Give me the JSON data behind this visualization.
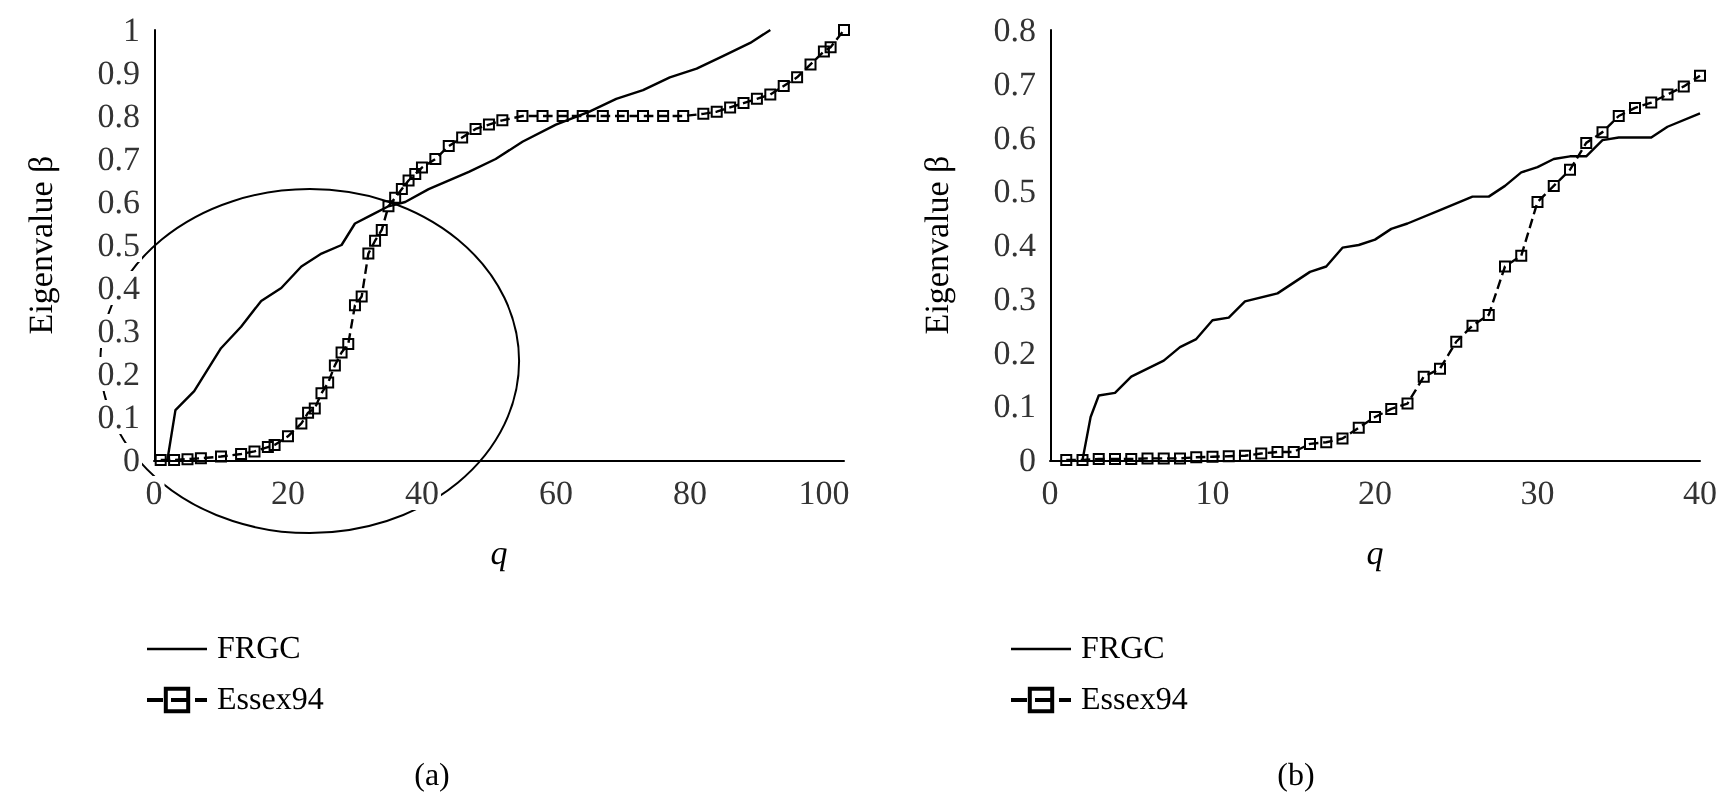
{
  "chart_data": [
    {
      "type": "line",
      "title": "(a)",
      "xlabel": "q",
      "ylabel": "Eigenvalue β",
      "xlim": [
        0,
        103
      ],
      "xticks": [
        0,
        20,
        40,
        60,
        80,
        100
      ],
      "ylim": [
        0,
        1
      ],
      "yticks": [
        0,
        0.1,
        0.2,
        0.3,
        0.4,
        0.5,
        0.6,
        0.7,
        0.8,
        0.9,
        1
      ],
      "grid": false,
      "legend": "bottom left",
      "series": [
        {
          "name": "FRGC",
          "color": "#000000",
          "marker": "none",
          "line_style": "solid",
          "x": [
            2,
            3.2,
            6,
            10,
            13,
            16,
            19,
            22,
            25,
            28,
            30,
            32.5,
            35,
            37.5,
            41,
            47,
            51,
            55,
            60,
            65,
            69,
            73,
            77,
            81,
            85,
            89,
            92
          ],
          "values": [
            0,
            0.116,
            0.16,
            0.26,
            0.31,
            0.37,
            0.4,
            0.45,
            0.48,
            0.5,
            0.55,
            0.57,
            0.59,
            0.6,
            0.63,
            0.67,
            0.7,
            0.74,
            0.78,
            0.81,
            0.84,
            0.86,
            0.89,
            0.91,
            0.94,
            0.97,
            1
          ]
        },
        {
          "name": "Essex94",
          "color": "#000000",
          "marker": "square",
          "line_style": "dashed",
          "x": [
            1,
            3,
            5,
            7,
            10,
            13,
            15,
            17,
            18,
            20,
            22,
            23,
            24,
            25,
            26,
            27,
            28,
            29,
            30,
            31,
            32,
            33,
            34,
            35,
            36,
            37,
            38,
            39,
            40,
            42,
            44,
            46,
            48,
            50,
            52,
            55,
            58,
            61,
            64,
            67,
            70,
            73,
            76,
            79,
            82,
            84,
            86,
            88,
            90,
            92,
            94,
            96,
            98,
            100,
            101,
            103
          ],
          "values": [
            0,
            0,
            0.002,
            0.004,
            0.008,
            0.014,
            0.02,
            0.03,
            0.035,
            0.055,
            0.085,
            0.11,
            0.12,
            0.155,
            0.18,
            0.22,
            0.25,
            0.27,
            0.36,
            0.38,
            0.48,
            0.51,
            0.535,
            0.59,
            0.61,
            0.63,
            0.65,
            0.665,
            0.68,
            0.7,
            0.73,
            0.75,
            0.77,
            0.78,
            0.79,
            0.8,
            0.8,
            0.8,
            0.8,
            0.8,
            0.8,
            0.8,
            0.8,
            0.8,
            0.805,
            0.81,
            0.82,
            0.83,
            0.84,
            0.85,
            0.87,
            0.89,
            0.92,
            0.95,
            0.96,
            1
          ]
        }
      ]
    },
    {
      "type": "line",
      "title": "(b)",
      "xlabel": "q",
      "ylabel": "Eigenvalue β",
      "xlim": [
        0,
        40
      ],
      "xticks": [
        0,
        10,
        20,
        30,
        40
      ],
      "ylim": [
        0,
        0.8
      ],
      "yticks": [
        0,
        0.1,
        0.2,
        0.3,
        0.4,
        0.5,
        0.6,
        0.7,
        0.8
      ],
      "grid": false,
      "legend": "bottom left",
      "series": [
        {
          "name": "FRGC",
          "color": "#000000",
          "marker": "none",
          "line_style": "solid",
          "x": [
            2,
            2.5,
            3,
            4,
            5,
            7,
            8,
            9,
            10,
            11,
            12,
            14,
            16,
            17,
            18,
            19,
            20,
            21,
            22,
            24,
            26,
            27,
            28,
            29,
            30,
            31,
            32,
            33,
            34,
            35,
            37,
            38,
            40
          ],
          "values": [
            0,
            0.08,
            0.12,
            0.125,
            0.155,
            0.185,
            0.21,
            0.225,
            0.26,
            0.265,
            0.295,
            0.31,
            0.35,
            0.36,
            0.395,
            0.4,
            0.41,
            0.43,
            0.44,
            0.465,
            0.49,
            0.49,
            0.51,
            0.535,
            0.545,
            0.56,
            0.565,
            0.565,
            0.595,
            0.6,
            0.6,
            0.62,
            0.645
          ]
        },
        {
          "name": "Essex94",
          "color": "#000000",
          "marker": "square",
          "line_style": "dashed",
          "x": [
            1,
            2,
            3,
            4,
            5,
            6,
            7,
            8,
            9,
            10,
            11,
            12,
            13,
            14,
            15,
            16,
            17,
            18,
            19,
            20,
            21,
            22,
            23,
            24,
            25,
            26,
            27,
            28,
            29,
            30,
            31,
            32,
            33,
            34,
            35,
            36,
            37,
            38,
            39,
            40
          ],
          "values": [
            0,
            0,
            0.002,
            0.002,
            0.002,
            0.003,
            0.003,
            0.003,
            0.005,
            0.006,
            0.007,
            0.008,
            0.012,
            0.015,
            0.015,
            0.03,
            0.033,
            0.04,
            0.06,
            0.08,
            0.095,
            0.105,
            0.155,
            0.17,
            0.22,
            0.25,
            0.27,
            0.36,
            0.38,
            0.48,
            0.51,
            0.54,
            0.59,
            0.61,
            0.64,
            0.655,
            0.665,
            0.68,
            0.695,
            0.715
          ]
        }
      ]
    }
  ]
}
